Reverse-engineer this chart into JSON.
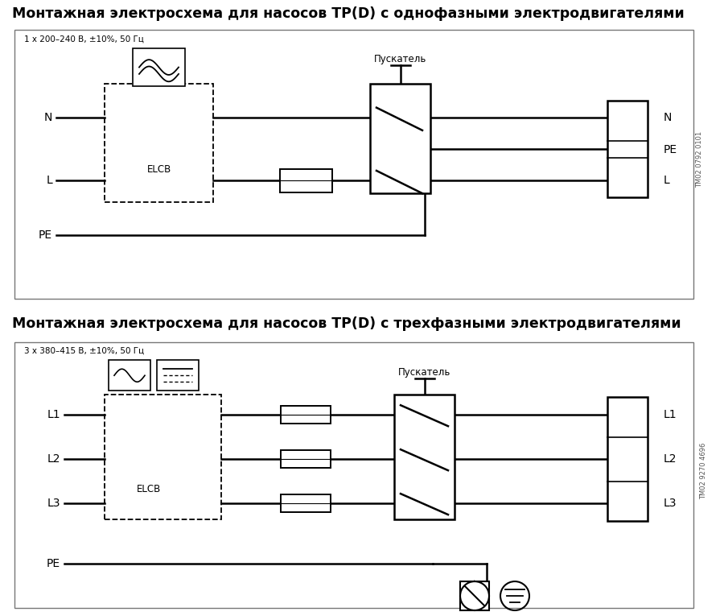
{
  "title1": "Монтажная электросхема для насосов ТР(D) с однофазными электродвигателями",
  "title2": "Монтажная электросхема для насосов ТР(D) с трехфазными электродвигателями",
  "subtitle1": "1 х 200–240 В, ±10%, 50 Гц",
  "subtitle2": "3 х 380–415 В, ±10%, 50 Гц",
  "label_puskatel": "Пускатель",
  "label_elcb": "ELCB",
  "watermark1": "ТМ02 0792 0101",
  "watermark2": "ТМ02 9270 4696",
  "bg_color": "#ffffff",
  "line_color": "#000000",
  "font_size_title": 12.5,
  "font_size_label": 8.5,
  "font_size_sub": 7.5,
  "font_size_wm": 6
}
